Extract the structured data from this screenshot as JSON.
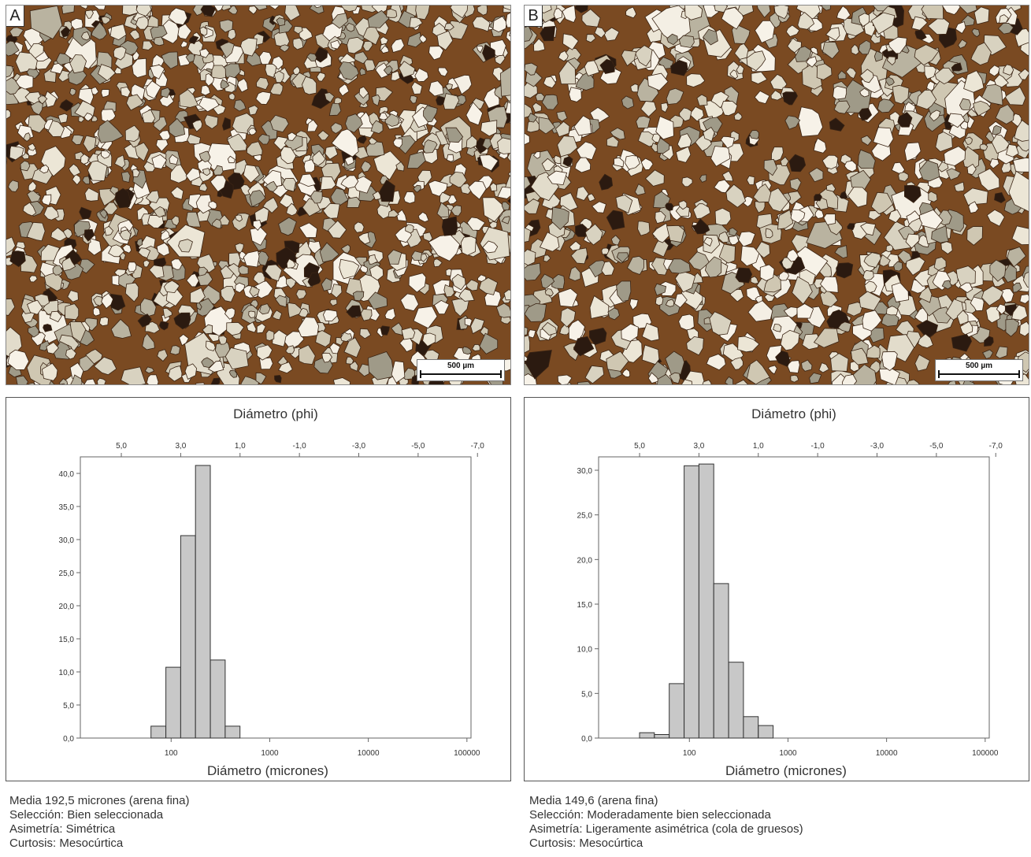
{
  "panels": [
    {
      "label": "A",
      "scale_text": "500 µm",
      "stats": [
        "Media 192,5 micrones (arena fina)",
        "Selección: Bien seleccionada",
        "Asimetría: Simétrica",
        "Curtosis: Mesocúrtica"
      ]
    },
    {
      "label": "B",
      "scale_text": "500 µm",
      "stats": [
        "Media 149,6 (arena fina)",
        "Selección: Moderadamente bien seleccionada",
        "Asimetría: Ligeramente asimétrica (cola de gruesos)",
        "Curtosis: Mesocúrtica"
      ]
    }
  ],
  "chart_data": [
    {
      "type": "bar",
      "top_axis_title": "Diámetro (phi)",
      "xlabel": "Diámetro (micrones)",
      "x_scale": "log",
      "xlim": [
        12,
        110000
      ],
      "x_ticks": [
        100,
        1000,
        10000,
        100000
      ],
      "x_tick_labels": [
        "100",
        "1000",
        "10000",
        "100000"
      ],
      "top_ticks_phi": [
        5,
        3,
        1,
        -1,
        -3,
        -5,
        -7
      ],
      "top_tick_labels": [
        "5,0",
        "3,0",
        "1,0",
        "-1,0",
        "-3,0",
        "-5,0",
        "-7,0"
      ],
      "ylim": [
        0,
        42.5
      ],
      "y_ticks": [
        0,
        5,
        10,
        15,
        20,
        25,
        30,
        35,
        40
      ],
      "y_tick_labels": [
        "0,0",
        "5,0",
        "10,0",
        "15,0",
        "20,0",
        "25,0",
        "30,0",
        "35,0",
        "40,0"
      ],
      "bins_phi": [
        [
          4.0,
          3.5
        ],
        [
          3.5,
          3.0
        ],
        [
          3.0,
          2.5
        ],
        [
          2.5,
          2.0
        ],
        [
          2.0,
          1.5
        ],
        [
          1.5,
          1.0
        ]
      ],
      "values": [
        1.8,
        10.7,
        30.6,
        41.2,
        11.8,
        1.8
      ],
      "bar_color": "#c8c8c8",
      "grid": false
    },
    {
      "type": "bar",
      "top_axis_title": "Diámetro (phi)",
      "xlabel": "Diámetro (micrones)",
      "x_scale": "log",
      "xlim": [
        12,
        110000
      ],
      "x_ticks": [
        100,
        1000,
        10000,
        100000
      ],
      "x_tick_labels": [
        "100",
        "1000",
        "10000",
        "100000"
      ],
      "top_ticks_phi": [
        5,
        3,
        1,
        -1,
        -3,
        -5,
        -7
      ],
      "top_tick_labels": [
        "5,0",
        "3,0",
        "1,0",
        "-1,0",
        "-3,0",
        "-5,0",
        "-7,0"
      ],
      "ylim": [
        0,
        31.5
      ],
      "y_ticks": [
        0,
        5,
        10,
        15,
        20,
        25,
        30
      ],
      "y_tick_labels": [
        "0,0",
        "5,0",
        "10,0",
        "15,0",
        "20,0",
        "25,0",
        "30,0"
      ],
      "bins_phi": [
        [
          5.0,
          4.5
        ],
        [
          4.5,
          4.0
        ],
        [
          4.0,
          3.5
        ],
        [
          3.5,
          3.0
        ],
        [
          3.0,
          2.5
        ],
        [
          2.5,
          2.0
        ],
        [
          2.0,
          1.5
        ],
        [
          1.5,
          1.0
        ],
        [
          1.0,
          0.5
        ]
      ],
      "values": [
        0.6,
        0.4,
        6.1,
        30.5,
        30.7,
        17.3,
        8.5,
        2.4,
        1.4
      ],
      "bar_color": "#c8c8c8",
      "grid": false
    }
  ]
}
